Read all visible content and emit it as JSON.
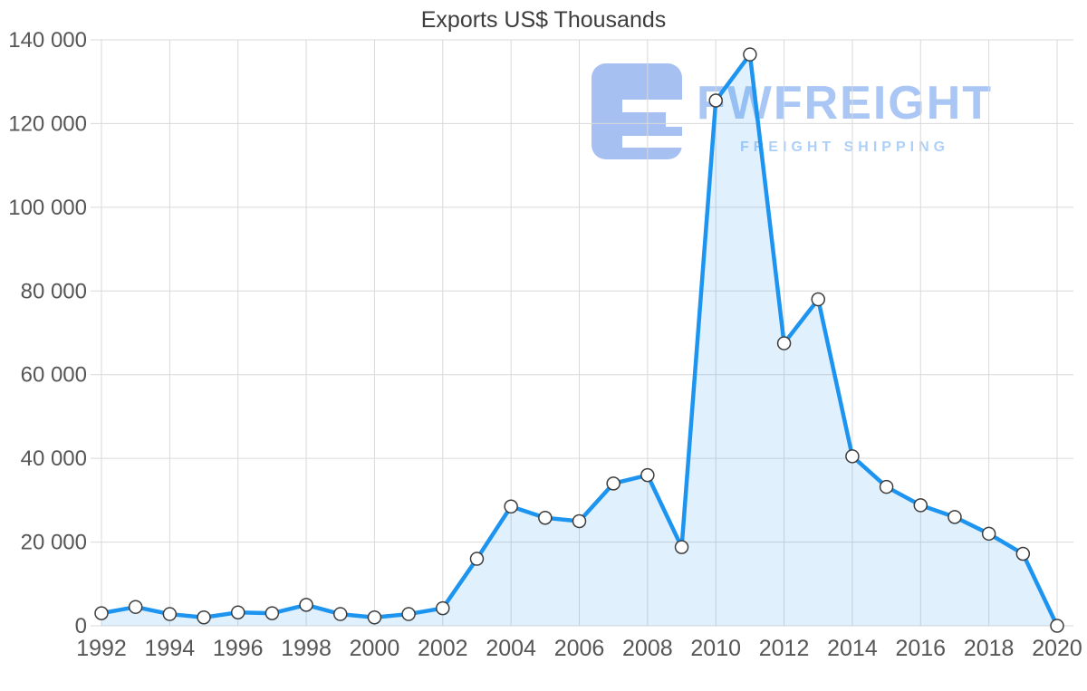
{
  "page": {
    "background": "#ffffff"
  },
  "watermark": {
    "brand": "FWFREIGHT",
    "tagline": "FREIGHT SHIPPING",
    "logo_color": "#a6c0f2",
    "brand_color": "#a9c6f5",
    "tagline_color": "#aed0f8"
  },
  "chart_data": {
    "type": "line",
    "title": "Exports US$ Thousands",
    "xlabel": "",
    "ylabel": "",
    "x": [
      1992,
      1993,
      1994,
      1995,
      1996,
      1997,
      1998,
      1999,
      2000,
      2001,
      2002,
      2003,
      2004,
      2005,
      2006,
      2007,
      2008,
      2009,
      2010,
      2011,
      2012,
      2013,
      2014,
      2015,
      2016,
      2017,
      2018,
      2019,
      2020
    ],
    "values": [
      3000,
      4500,
      2800,
      2000,
      3200,
      3000,
      5000,
      2800,
      2000,
      2800,
      4200,
      16000,
      28500,
      25800,
      25000,
      34000,
      36000,
      18800,
      125500,
      136500,
      67500,
      78000,
      40500,
      33200,
      28800,
      26000,
      22000,
      17200,
      0
    ],
    "x_tick_labels": [
      "1992",
      "1994",
      "1996",
      "1998",
      "2000",
      "2002",
      "2004",
      "2006",
      "2008",
      "2010",
      "2012",
      "2014",
      "2016",
      "2018",
      "2020"
    ],
    "x_tick_years": [
      1992,
      1994,
      1996,
      1998,
      2000,
      2002,
      2004,
      2006,
      2008,
      2010,
      2012,
      2014,
      2016,
      2018,
      2020
    ],
    "y_ticks": [
      0,
      20000,
      40000,
      60000,
      80000,
      100000,
      120000,
      140000
    ],
    "y_tick_labels": [
      "0",
      "20 000",
      "40 000",
      "60 000",
      "80 000",
      "100 000",
      "120 000",
      "140 000"
    ],
    "ylim": [
      0,
      140000
    ],
    "grid": true,
    "legend": false,
    "area_fill": true,
    "marker": "circle",
    "colors": {
      "line": "#1d95f0",
      "area": "rgba(33,150,243,0.14)",
      "marker_fill": "#ffffff",
      "marker_stroke": "#3d3d3d",
      "grid": "#d9d9d9",
      "axis_text": "#565656",
      "title": "#3d3d3d"
    }
  }
}
